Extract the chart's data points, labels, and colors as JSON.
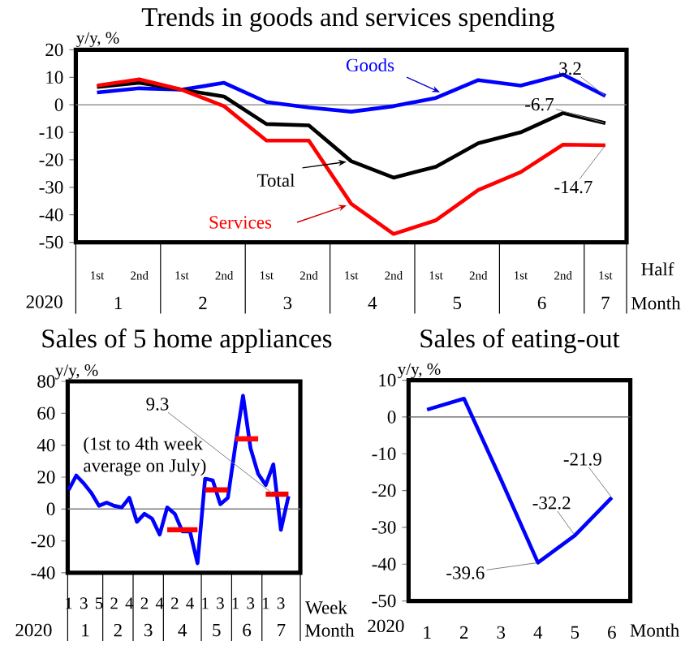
{
  "chart_data": [
    {
      "type": "line",
      "title": "Trends in goods and services spending",
      "ylabel": "y/y, %",
      "xlabel": "Half",
      "categories": [
        "1st",
        "2nd",
        "1st",
        "2nd",
        "1st",
        "2nd",
        "1st",
        "2nd",
        "1st",
        "2nd",
        "1st",
        "2nd",
        "1st"
      ],
      "ylim": [
        -50,
        20
      ],
      "yticks": [
        -50,
        -40,
        -30,
        -20,
        -10,
        0,
        10,
        20
      ],
      "series": [
        {
          "name": "Goods",
          "color": "#0000ff",
          "values": [
            4.5,
            6,
            5.5,
            8,
            1,
            -1,
            -2.5,
            -0.5,
            2.5,
            9,
            7,
            11,
            3.2
          ],
          "value_labels": [
            null,
            null,
            null,
            null,
            null,
            null,
            null,
            null,
            null,
            null,
            null,
            null,
            "3.2"
          ]
        },
        {
          "name": "Total",
          "color": "#000000",
          "values": [
            6.5,
            8,
            5.5,
            3,
            -7,
            -7.5,
            -20.5,
            -26.5,
            -22.5,
            -14,
            -10,
            -3,
            -6.7
          ],
          "value_labels": [
            null,
            null,
            null,
            null,
            null,
            null,
            null,
            null,
            null,
            null,
            null,
            null,
            "-6.7"
          ]
        },
        {
          "name": "Services",
          "color": "#ff0000",
          "values": [
            7,
            9.3,
            5.5,
            -0.5,
            -13,
            -13,
            -36,
            -47,
            -42,
            -31,
            -24.5,
            -14.5,
            -14.7
          ],
          "value_labels": [
            null,
            null,
            null,
            null,
            null,
            null,
            null,
            null,
            null,
            null,
            null,
            null,
            "-14.7"
          ]
        }
      ],
      "ref_lines": [
        {
          "axis": "y",
          "value": 0,
          "color": "#7f7f7f"
        }
      ],
      "annotations": [
        "2020",
        "1",
        "2",
        "3",
        "4",
        "5",
        "6",
        "7",
        "Month"
      ]
    },
    {
      "type": "line",
      "title": "Sales of 5 home appliances",
      "ylabel": "y/y, %",
      "xlabel": "Week",
      "categories": [
        "1",
        null,
        "3",
        null,
        "5",
        null,
        "2",
        null,
        "4",
        null,
        "2",
        null,
        "4",
        null,
        "2",
        null,
        "4",
        null,
        "1",
        null,
        "3",
        null,
        "1",
        null,
        "3",
        null,
        "1",
        null,
        "3",
        null
      ],
      "ylim": [
        -40,
        80
      ],
      "yticks": [
        -40,
        -20,
        0,
        20,
        40,
        60,
        80
      ],
      "series": [
        {
          "color": "#0000ff",
          "values": [
            12,
            21,
            16,
            10,
            2,
            4,
            2,
            1,
            7,
            -8,
            -3,
            -6,
            -16,
            1,
            -3,
            -14,
            -14,
            -34,
            19,
            18,
            3,
            7,
            40,
            71,
            38,
            22,
            15,
            28,
            -13,
            8
          ]
        },
        {
          "color": "#ff0000",
          "values": [
            null,
            null,
            null,
            null,
            null,
            null,
            null,
            null,
            null,
            null,
            null,
            null,
            null,
            -13,
            -13,
            -13,
            -13,
            -13,
            null,
            null,
            null,
            null,
            null,
            null,
            null,
            null,
            null,
            null,
            null,
            null
          ]
        },
        {
          "color": "#f70000",
          "values": [
            null,
            null,
            null,
            null,
            null,
            null,
            null,
            null,
            null,
            null,
            null,
            null,
            null,
            null,
            null,
            null,
            null,
            null,
            12,
            12,
            12,
            12,
            null,
            null,
            null,
            null,
            null,
            null,
            null,
            null
          ]
        },
        {
          "color": "#ff0808",
          "values": [
            null,
            null,
            null,
            null,
            null,
            null,
            null,
            null,
            null,
            null,
            null,
            null,
            null,
            null,
            null,
            null,
            null,
            null,
            null,
            null,
            null,
            null,
            44,
            44,
            44,
            44,
            null,
            null,
            null,
            null
          ]
        },
        {
          "color": "#f00000",
          "values": [
            null,
            null,
            null,
            null,
            null,
            null,
            null,
            null,
            null,
            null,
            null,
            null,
            null,
            null,
            null,
            null,
            null,
            null,
            null,
            null,
            null,
            null,
            null,
            null,
            null,
            null,
            9.3,
            9.3,
            9.3,
            9.3
          ],
          "value_labels": [
            null,
            null,
            null,
            null,
            null,
            null,
            null,
            null,
            null,
            null,
            null,
            null,
            null,
            null,
            null,
            null,
            null,
            null,
            null,
            null,
            null,
            null,
            null,
            null,
            null,
            null,
            null,
            "9.3",
            null,
            null
          ]
        }
      ],
      "ref_lines": [
        {
          "axis": "y",
          "value": 0,
          "color": "#7f7f7f"
        }
      ],
      "annotations": [
        "2020",
        "1",
        "2",
        "3",
        "4",
        "5",
        "6",
        "7",
        "Month",
        "(1st to 4th week average on July)"
      ]
    },
    {
      "type": "line",
      "title": "Sales of eating-out",
      "ylabel": "y/y, %",
      "xlabel": "Month",
      "x": [
        1,
        2,
        3,
        4,
        5,
        6
      ],
      "xlim": [
        0.5,
        6.5
      ],
      "xticks": [
        1,
        2,
        3,
        4,
        5,
        6
      ],
      "ylim": [
        -50,
        10
      ],
      "yticks": [
        -50,
        -40,
        -30,
        -20,
        -10,
        0,
        10
      ],
      "series": [
        {
          "color": "#0000ff",
          "values": [
            2,
            5,
            -17,
            -39.6,
            -32.2,
            -21.9
          ],
          "value_labels": [
            null,
            null,
            null,
            "-39.6",
            "-32.2",
            "-21.9"
          ]
        }
      ],
      "ref_lines": [
        {
          "axis": "y",
          "value": 0,
          "color": "#595959"
        }
      ],
      "annotations": [
        "2020"
      ]
    }
  ]
}
